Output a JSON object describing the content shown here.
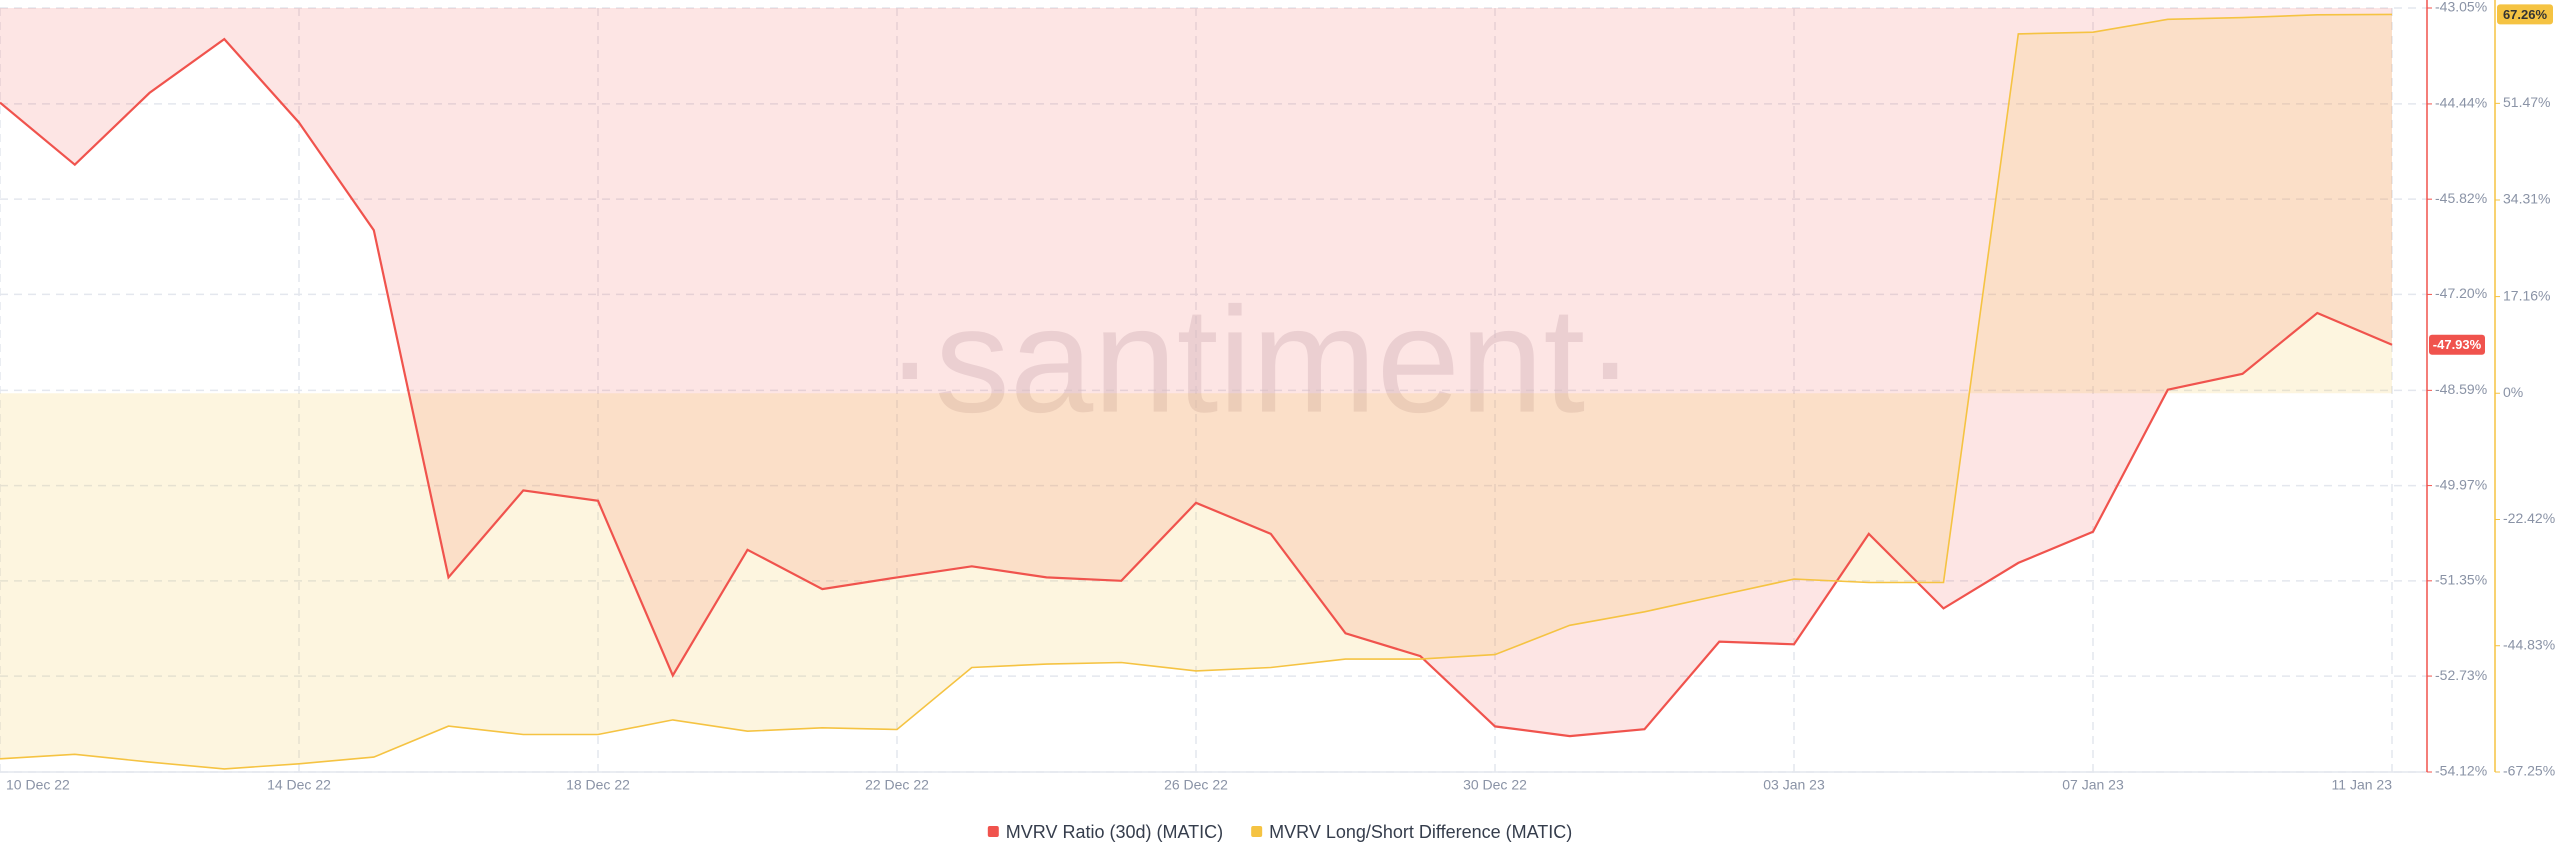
{
  "chart_data": {
    "type": "line",
    "watermark": "·santiment·",
    "categories": [
      "10 Dec 22",
      null,
      null,
      null,
      "14 Dec 22",
      null,
      null,
      null,
      "18 Dec 22",
      null,
      null,
      null,
      "22 Dec 22",
      null,
      null,
      null,
      "26 Dec 22",
      null,
      null,
      null,
      "30 Dec 22",
      null,
      null,
      null,
      "03 Jan 23",
      null,
      null,
      null,
      "07 Jan 23",
      null,
      null,
      null,
      "11 Jan 23"
    ],
    "ylim": [
      -54.12,
      -43.05
    ],
    "yticks": [
      {
        "value": -43.05,
        "label": "-43.05%"
      },
      {
        "value": -44.44,
        "label": "-44.44%"
      },
      {
        "value": -45.82,
        "label": "-45.82%"
      },
      {
        "value": -47.2,
        "label": "-47.20%"
      },
      {
        "value": -48.59,
        "label": "-48.59%"
      },
      {
        "value": -49.97,
        "label": "-49.97%"
      },
      {
        "value": -51.35,
        "label": "-51.35%"
      },
      {
        "value": -52.73,
        "label": "-52.73%"
      },
      {
        "value": -54.12,
        "label": "-54.12%"
      }
    ],
    "y2lim": [
      -67.25,
      68.4
    ],
    "y2ticks": [
      {
        "value": 51.47,
        "label": "51.47%"
      },
      {
        "value": 34.31,
        "label": "34.31%"
      },
      {
        "value": 17.16,
        "label": "17.16%"
      },
      {
        "value": 0,
        "label": "0%"
      },
      {
        "value": -22.42,
        "label": "-22.42%"
      },
      {
        "value": -44.83,
        "label": "-44.83%"
      },
      {
        "value": -67.25,
        "label": "-67.25%"
      }
    ],
    "grid": true,
    "series": [
      {
        "name": "MVRV Ratio (30d) (MATIC)",
        "color": "#f0534d",
        "axis": "y",
        "values": [
          -44.42,
          -45.32,
          -44.28,
          -43.5,
          -44.71,
          -46.27,
          -51.3,
          -50.04,
          -50.19,
          -52.72,
          -50.9,
          -51.47,
          -51.3,
          -51.14,
          -51.3,
          -51.35,
          -50.22,
          -50.67,
          -52.11,
          -52.44,
          -53.46,
          -53.6,
          -53.5,
          -52.23,
          -52.27,
          -50.67,
          -51.75,
          -51.09,
          -50.64,
          -48.58,
          -48.35,
          -47.47,
          -47.93
        ],
        "value_labels": [
          null,
          null,
          null,
          null,
          null,
          null,
          null,
          null,
          null,
          null,
          null,
          null,
          null,
          null,
          null,
          null,
          null,
          null,
          null,
          null,
          null,
          null,
          null,
          null,
          null,
          null,
          null,
          null,
          null,
          null,
          null,
          null,
          "-47.93%"
        ]
      },
      {
        "name": "MVRV Long/Short Difference (MATIC)",
        "color": "#f5c342",
        "axis": "y2",
        "values": [
          -64.9,
          -64.1,
          -65.5,
          -66.7,
          -65.8,
          -64.6,
          -59.1,
          -60.6,
          -60.6,
          -58.0,
          -60.0,
          -59.4,
          -59.7,
          -48.7,
          -48.1,
          -47.8,
          -49.3,
          -48.7,
          -47.2,
          -47.2,
          -46.4,
          -41.2,
          -38.8,
          -35.9,
          -33.0,
          -33.6,
          -33.6,
          63.8,
          64.1,
          66.4,
          66.7,
          67.2,
          67.26
        ],
        "value_labels": [
          null,
          null,
          null,
          null,
          null,
          null,
          null,
          null,
          null,
          null,
          null,
          null,
          null,
          null,
          null,
          null,
          null,
          null,
          null,
          null,
          null,
          null,
          null,
          null,
          null,
          null,
          null,
          null,
          null,
          null,
          null,
          null,
          "67.26%"
        ]
      }
    ]
  }
}
